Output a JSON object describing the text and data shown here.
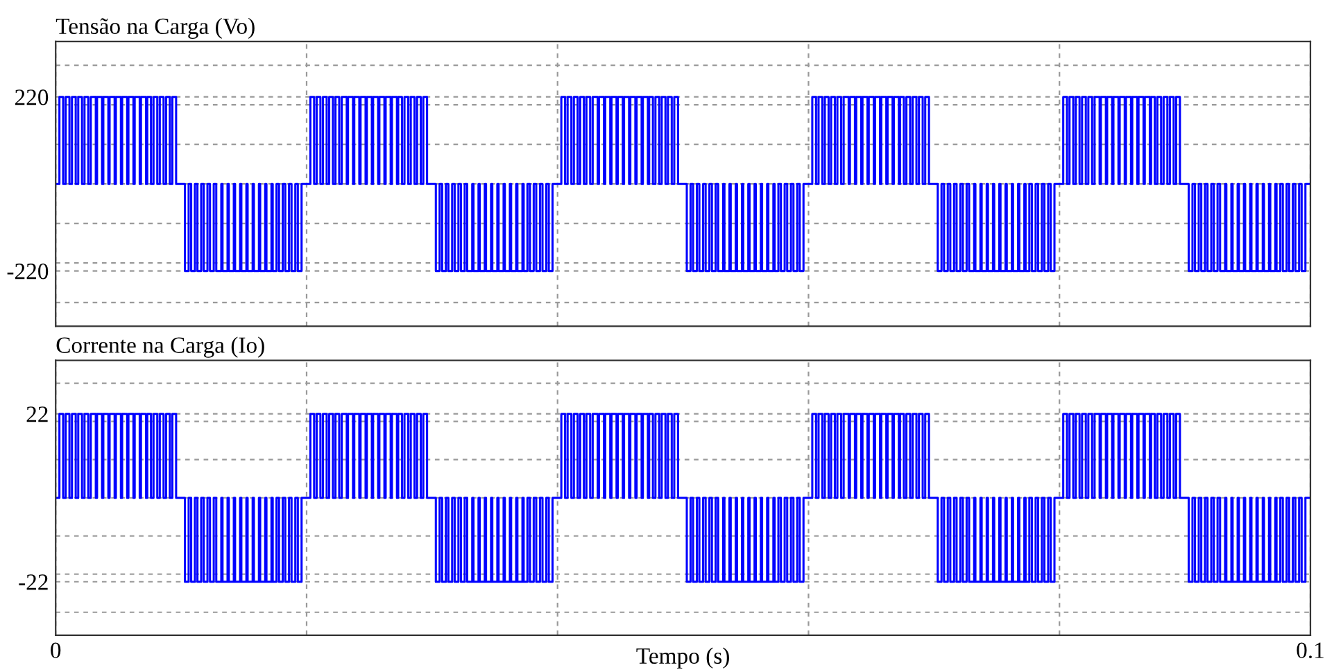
{
  "chart_data": [
    {
      "type": "step",
      "title": "Tensão na Carga (Vo)",
      "xlim": [
        0,
        0.1
      ],
      "ylim": [
        -360,
        360
      ],
      "grid": true,
      "tick_labels": "y",
      "xticks": [
        0,
        {
          "value": 0.02,
          "label": null
        },
        {
          "value": 0.04,
          "label": null
        },
        {
          "value": 0.06,
          "label": null
        },
        {
          "value": 0.08,
          "label": null
        },
        {
          "value": 0.1,
          "label": null
        }
      ],
      "yticks": [
        {
          "value": -300,
          "label": null
        },
        -220,
        {
          "value": -200,
          "label": null
        },
        {
          "value": -100,
          "label": null
        },
        {
          "value": 0,
          "label": null
        },
        {
          "value": 100,
          "label": null
        },
        {
          "value": 200,
          "label": null
        },
        220,
        {
          "value": 300,
          "label": null
        }
      ],
      "x": [
        0,
        0.0003,
        0.0006,
        0.0008,
        0.0011,
        0.0013,
        0.0016,
        0.0018,
        0.0021,
        0.0023,
        0.0026,
        0.0028,
        0.0032,
        0.0033,
        0.0037,
        0.0038,
        0.0042,
        0.0043,
        0.0047,
        0.0048,
        0.0052,
        0.0053,
        0.0057,
        0.0058,
        0.0062,
        0.0063,
        0.0067,
        0.0068,
        0.0072,
        0.0073,
        0.0076,
        0.0078,
        0.0081,
        0.0083,
        0.0086,
        0.0088,
        0.0091,
        0.0093,
        0.0096,
        0.0103,
        0.0106,
        0.0108,
        0.0111,
        0.0113,
        0.0116,
        0.0118,
        0.0121,
        0.0123,
        0.0126,
        0.0128,
        0.0132,
        0.0133,
        0.0137,
        0.0138,
        0.0142,
        0.0143,
        0.0147,
        0.0148,
        0.0152,
        0.0153,
        0.0157,
        0.0158,
        0.0162,
        0.0163,
        0.0167,
        0.0168,
        0.0172,
        0.0173,
        0.0176,
        0.0178,
        0.0181,
        0.0183,
        0.0186,
        0.0188,
        0.0191,
        0.0193,
        0.0196,
        0.0203,
        0.0206,
        0.0208,
        0.0211,
        0.0213,
        0.0216,
        0.0218,
        0.0221,
        0.0223,
        0.0226,
        0.0228,
        0.0232,
        0.0233,
        0.0237,
        0.0238,
        0.0242,
        0.0243,
        0.0247,
        0.0248,
        0.0252,
        0.0253,
        0.0257,
        0.0258,
        0.0262,
        0.0263,
        0.0267,
        0.0268,
        0.0272,
        0.0273,
        0.0276,
        0.0278,
        0.0281,
        0.0283,
        0.0286,
        0.0288,
        0.0291,
        0.0293,
        0.0296,
        0.0303,
        0.0306,
        0.0308,
        0.0311,
        0.0313,
        0.0316,
        0.0318,
        0.0321,
        0.0323,
        0.0326,
        0.0328,
        0.0332,
        0.0333,
        0.0337,
        0.0338,
        0.0342,
        0.0343,
        0.0347,
        0.0348,
        0.0352,
        0.0353,
        0.0357,
        0.0358,
        0.0362,
        0.0363,
        0.0367,
        0.0368,
        0.0372,
        0.0373,
        0.0376,
        0.0378,
        0.0381,
        0.0383,
        0.0386,
        0.0388,
        0.0391,
        0.0393,
        0.0396,
        0.0403,
        0.0406,
        0.0408,
        0.0411,
        0.0413,
        0.0416,
        0.0418,
        0.0421,
        0.0423,
        0.0426,
        0.0428,
        0.0432,
        0.0433,
        0.0437,
        0.0438,
        0.0442,
        0.0443,
        0.0447,
        0.0448,
        0.0452,
        0.0453,
        0.0457,
        0.0458,
        0.0462,
        0.0463,
        0.0467,
        0.0468,
        0.0472,
        0.0473,
        0.0476,
        0.0478,
        0.0481,
        0.0483,
        0.0486,
        0.0488,
        0.0491,
        0.0493,
        0.0496,
        0.0503,
        0.0506,
        0.0508,
        0.0511,
        0.0513,
        0.0516,
        0.0518,
        0.0521,
        0.0523,
        0.0526,
        0.0528,
        0.0532,
        0.0533,
        0.0537,
        0.0538,
        0.0542,
        0.0543,
        0.0547,
        0.0548,
        0.0552,
        0.0553,
        0.0557,
        0.0558,
        0.0562,
        0.0563,
        0.0567,
        0.0568,
        0.0572,
        0.0573,
        0.0576,
        0.0578,
        0.0581,
        0.0583,
        0.0586,
        0.0588,
        0.0591,
        0.0593,
        0.0596,
        0.0603,
        0.0606,
        0.0608,
        0.0611,
        0.0613,
        0.0616,
        0.0618,
        0.0621,
        0.0623,
        0.0626,
        0.0628,
        0.0632,
        0.0633,
        0.0637,
        0.0638,
        0.0642,
        0.0643,
        0.0647,
        0.0648,
        0.0652,
        0.0653,
        0.0657,
        0.0658,
        0.0662,
        0.0663,
        0.0667,
        0.0668,
        0.0672,
        0.0673,
        0.0676,
        0.0678,
        0.0681,
        0.0683,
        0.0686,
        0.0688,
        0.0691,
        0.0693,
        0.0696,
        0.0703,
        0.0706,
        0.0708,
        0.0711,
        0.0713,
        0.0716,
        0.0718,
        0.0721,
        0.0723,
        0.0726,
        0.0728,
        0.0732,
        0.0733,
        0.0737,
        0.0738,
        0.0742,
        0.0743,
        0.0747,
        0.0748,
        0.0752,
        0.0753,
        0.0757,
        0.0758,
        0.0762,
        0.0763,
        0.0767,
        0.0768,
        0.0772,
        0.0773,
        0.0776,
        0.0778,
        0.0781,
        0.0783,
        0.0786,
        0.0788,
        0.0791,
        0.0793,
        0.0796,
        0.0803,
        0.0806,
        0.0808,
        0.0811,
        0.0813,
        0.0816,
        0.0818,
        0.0821,
        0.0823,
        0.0826,
        0.0828,
        0.0832,
        0.0833,
        0.0837,
        0.0838,
        0.0842,
        0.0843,
        0.0847,
        0.0848,
        0.0852,
        0.0853,
        0.0857,
        0.0858,
        0.0862,
        0.0863,
        0.0867,
        0.0868,
        0.0872,
        0.0873,
        0.0876,
        0.0878,
        0.0881,
        0.0883,
        0.0886,
        0.0888,
        0.0891,
        0.0893,
        0.0896,
        0.0903,
        0.0906,
        0.0908,
        0.0911,
        0.0913,
        0.0916,
        0.0918,
        0.0921,
        0.0923,
        0.0926,
        0.0928,
        0.0932,
        0.0933,
        0.0937,
        0.0938,
        0.0942,
        0.0943,
        0.0947,
        0.0948,
        0.0952,
        0.0953,
        0.0957,
        0.0958,
        0.0962,
        0.0963,
        0.0967,
        0.0968,
        0.0972,
        0.0973,
        0.0976,
        0.0978,
        0.0981,
        0.0983,
        0.0986,
        0.0988,
        0.0991,
        0.0993,
        0.0996,
        0.1
      ],
      "series": [
        {
          "color": "#0000ff",
          "values": [
            0,
            220,
            0,
            220,
            0,
            220,
            0,
            220,
            0,
            220,
            0,
            220,
            0,
            220,
            0,
            220,
            0,
            220,
            0,
            220,
            0,
            220,
            0,
            220,
            0,
            220,
            0,
            220,
            0,
            220,
            0,
            220,
            0,
            220,
            0,
            220,
            0,
            220,
            0,
            -220,
            0,
            -220,
            0,
            -220,
            0,
            -220,
            0,
            -220,
            0,
            -220,
            0,
            -220,
            0,
            -220,
            0,
            -220,
            0,
            -220,
            0,
            -220,
            0,
            -220,
            0,
            -220,
            0,
            -220,
            0,
            -220,
            0,
            -220,
            0,
            -220,
            0,
            -220,
            0,
            -220,
            0,
            220,
            0,
            220,
            0,
            220,
            0,
            220,
            0,
            220,
            0,
            220,
            0,
            220,
            0,
            220,
            0,
            220,
            0,
            220,
            0,
            220,
            0,
            220,
            0,
            220,
            0,
            220,
            0,
            220,
            0,
            220,
            0,
            220,
            0,
            220,
            0,
            220,
            0,
            -220,
            0,
            -220,
            0,
            -220,
            0,
            -220,
            0,
            -220,
            0,
            -220,
            0,
            -220,
            0,
            -220,
            0,
            -220,
            0,
            -220,
            0,
            -220,
            0,
            -220,
            0,
            -220,
            0,
            -220,
            0,
            -220,
            0,
            -220,
            0,
            -220,
            0,
            -220,
            0,
            -220,
            0,
            220,
            0,
            220,
            0,
            220,
            0,
            220,
            0,
            220,
            0,
            220,
            0,
            220,
            0,
            220,
            0,
            220,
            0,
            220,
            0,
            220,
            0,
            220,
            0,
            220,
            0,
            220,
            0,
            220,
            0,
            220,
            0,
            220,
            0,
            220,
            0,
            220,
            0,
            -220,
            0,
            -220,
            0,
            -220,
            0,
            -220,
            0,
            -220,
            0,
            -220,
            0,
            -220,
            0,
            -220,
            0,
            -220,
            0,
            -220,
            0,
            -220,
            0,
            -220,
            0,
            -220,
            0,
            -220,
            0,
            -220,
            0,
            -220,
            0,
            -220,
            0,
            -220,
            0,
            -220,
            0,
            220,
            0,
            220,
            0,
            220,
            0,
            220,
            0,
            220,
            0,
            220,
            0,
            220,
            0,
            220,
            0,
            220,
            0,
            220,
            0,
            220,
            0,
            220,
            0,
            220,
            0,
            220,
            0,
            220,
            0,
            220,
            0,
            220,
            0,
            220,
            0,
            220,
            0,
            -220,
            0,
            -220,
            0,
            -220,
            0,
            -220,
            0,
            -220,
            0,
            -220,
            0,
            -220,
            0,
            -220,
            0,
            -220,
            0,
            -220,
            0,
            -220,
            0,
            -220,
            0,
            -220,
            0,
            -220,
            0,
            -220,
            0,
            -220,
            0,
            -220,
            0,
            -220,
            0,
            -220,
            0,
            220,
            0,
            220,
            0,
            220,
            0,
            220,
            0,
            220,
            0,
            220,
            0,
            220,
            0,
            220,
            0,
            220,
            0,
            220,
            0,
            220,
            0,
            220,
            0,
            220,
            0,
            220,
            0,
            220,
            0,
            220,
            0,
            220,
            0,
            220,
            0,
            220,
            0,
            -220,
            0,
            -220,
            0,
            -220,
            0,
            -220,
            0,
            -220,
            0,
            -220,
            0,
            -220,
            0,
            -220,
            0,
            -220,
            0,
            -220,
            0,
            -220,
            0,
            -220,
            0,
            -220,
            0,
            -220,
            0,
            -220,
            0,
            -220,
            0,
            -220,
            0,
            -220,
            0,
            -220,
            0,
            0
          ]
        }
      ]
    },
    {
      "type": "step",
      "title": "Corrente na Carga (Io)",
      "xlabel": "Tempo (s)",
      "xlim": [
        0,
        0.1
      ],
      "ylim": [
        -36,
        36
      ],
      "grid": true,
      "xticks": [
        0,
        {
          "value": 0.02,
          "label": null
        },
        {
          "value": 0.04,
          "label": null
        },
        {
          "value": 0.06,
          "label": null
        },
        {
          "value": 0.08,
          "label": null
        },
        0.1
      ],
      "yticks": [
        {
          "value": -30,
          "label": null
        },
        -22,
        {
          "value": -20,
          "label": null
        },
        {
          "value": -10,
          "label": null
        },
        {
          "value": 0,
          "label": null
        },
        {
          "value": 10,
          "label": null
        },
        {
          "value": 20,
          "label": null
        },
        22,
        {
          "value": 30,
          "label": null
        }
      ],
      "x": [
        0,
        0.0003,
        0.0006,
        0.0008,
        0.0011,
        0.0013,
        0.0016,
        0.0018,
        0.0021,
        0.0023,
        0.0026,
        0.0028,
        0.0032,
        0.0033,
        0.0037,
        0.0038,
        0.0042,
        0.0043,
        0.0047,
        0.0048,
        0.0052,
        0.0053,
        0.0057,
        0.0058,
        0.0062,
        0.0063,
        0.0067,
        0.0068,
        0.0072,
        0.0073,
        0.0076,
        0.0078,
        0.0081,
        0.0083,
        0.0086,
        0.0088,
        0.0091,
        0.0093,
        0.0096,
        0.0103,
        0.0106,
        0.0108,
        0.0111,
        0.0113,
        0.0116,
        0.0118,
        0.0121,
        0.0123,
        0.0126,
        0.0128,
        0.0132,
        0.0133,
        0.0137,
        0.0138,
        0.0142,
        0.0143,
        0.0147,
        0.0148,
        0.0152,
        0.0153,
        0.0157,
        0.0158,
        0.0162,
        0.0163,
        0.0167,
        0.0168,
        0.0172,
        0.0173,
        0.0176,
        0.0178,
        0.0181,
        0.0183,
        0.0186,
        0.0188,
        0.0191,
        0.0193,
        0.0196,
        0.0203,
        0.0206,
        0.0208,
        0.0211,
        0.0213,
        0.0216,
        0.0218,
        0.0221,
        0.0223,
        0.0226,
        0.0228,
        0.0232,
        0.0233,
        0.0237,
        0.0238,
        0.0242,
        0.0243,
        0.0247,
        0.0248,
        0.0252,
        0.0253,
        0.0257,
        0.0258,
        0.0262,
        0.0263,
        0.0267,
        0.0268,
        0.0272,
        0.0273,
        0.0276,
        0.0278,
        0.0281,
        0.0283,
        0.0286,
        0.0288,
        0.0291,
        0.0293,
        0.0296,
        0.0303,
        0.0306,
        0.0308,
        0.0311,
        0.0313,
        0.0316,
        0.0318,
        0.0321,
        0.0323,
        0.0326,
        0.0328,
        0.0332,
        0.0333,
        0.0337,
        0.0338,
        0.0342,
        0.0343,
        0.0347,
        0.0348,
        0.0352,
        0.0353,
        0.0357,
        0.0358,
        0.0362,
        0.0363,
        0.0367,
        0.0368,
        0.0372,
        0.0373,
        0.0376,
        0.0378,
        0.0381,
        0.0383,
        0.0386,
        0.0388,
        0.0391,
        0.0393,
        0.0396,
        0.0403,
        0.0406,
        0.0408,
        0.0411,
        0.0413,
        0.0416,
        0.0418,
        0.0421,
        0.0423,
        0.0426,
        0.0428,
        0.0432,
        0.0433,
        0.0437,
        0.0438,
        0.0442,
        0.0443,
        0.0447,
        0.0448,
        0.0452,
        0.0453,
        0.0457,
        0.0458,
        0.0462,
        0.0463,
        0.0467,
        0.0468,
        0.0472,
        0.0473,
        0.0476,
        0.0478,
        0.0481,
        0.0483,
        0.0486,
        0.0488,
        0.0491,
        0.0493,
        0.0496,
        0.0503,
        0.0506,
        0.0508,
        0.0511,
        0.0513,
        0.0516,
        0.0518,
        0.0521,
        0.0523,
        0.0526,
        0.0528,
        0.0532,
        0.0533,
        0.0537,
        0.0538,
        0.0542,
        0.0543,
        0.0547,
        0.0548,
        0.0552,
        0.0553,
        0.0557,
        0.0558,
        0.0562,
        0.0563,
        0.0567,
        0.0568,
        0.0572,
        0.0573,
        0.0576,
        0.0578,
        0.0581,
        0.0583,
        0.0586,
        0.0588,
        0.0591,
        0.0593,
        0.0596,
        0.0603,
        0.0606,
        0.0608,
        0.0611,
        0.0613,
        0.0616,
        0.0618,
        0.0621,
        0.0623,
        0.0626,
        0.0628,
        0.0632,
        0.0633,
        0.0637,
        0.0638,
        0.0642,
        0.0643,
        0.0647,
        0.0648,
        0.0652,
        0.0653,
        0.0657,
        0.0658,
        0.0662,
        0.0663,
        0.0667,
        0.0668,
        0.0672,
        0.0673,
        0.0676,
        0.0678,
        0.0681,
        0.0683,
        0.0686,
        0.0688,
        0.0691,
        0.0693,
        0.0696,
        0.0703,
        0.0706,
        0.0708,
        0.0711,
        0.0713,
        0.0716,
        0.0718,
        0.0721,
        0.0723,
        0.0726,
        0.0728,
        0.0732,
        0.0733,
        0.0737,
        0.0738,
        0.0742,
        0.0743,
        0.0747,
        0.0748,
        0.0752,
        0.0753,
        0.0757,
        0.0758,
        0.0762,
        0.0763,
        0.0767,
        0.0768,
        0.0772,
        0.0773,
        0.0776,
        0.0778,
        0.0781,
        0.0783,
        0.0786,
        0.0788,
        0.0791,
        0.0793,
        0.0796,
        0.0803,
        0.0806,
        0.0808,
        0.0811,
        0.0813,
        0.0816,
        0.0818,
        0.0821,
        0.0823,
        0.0826,
        0.0828,
        0.0832,
        0.0833,
        0.0837,
        0.0838,
        0.0842,
        0.0843,
        0.0847,
        0.0848,
        0.0852,
        0.0853,
        0.0857,
        0.0858,
        0.0862,
        0.0863,
        0.0867,
        0.0868,
        0.0872,
        0.0873,
        0.0876,
        0.0878,
        0.0881,
        0.0883,
        0.0886,
        0.0888,
        0.0891,
        0.0893,
        0.0896,
        0.0903,
        0.0906,
        0.0908,
        0.0911,
        0.0913,
        0.0916,
        0.0918,
        0.0921,
        0.0923,
        0.0926,
        0.0928,
        0.0932,
        0.0933,
        0.0937,
        0.0938,
        0.0942,
        0.0943,
        0.0947,
        0.0948,
        0.0952,
        0.0953,
        0.0957,
        0.0958,
        0.0962,
        0.0963,
        0.0967,
        0.0968,
        0.0972,
        0.0973,
        0.0976,
        0.0978,
        0.0981,
        0.0983,
        0.0986,
        0.0988,
        0.0991,
        0.0993,
        0.0996,
        0.1
      ],
      "series": [
        {
          "color": "#0000ff",
          "values": [
            0,
            22,
            0,
            22,
            0,
            22,
            0,
            22,
            0,
            22,
            0,
            22,
            0,
            22,
            0,
            22,
            0,
            22,
            0,
            22,
            0,
            22,
            0,
            22,
            0,
            22,
            0,
            22,
            0,
            22,
            0,
            22,
            0,
            22,
            0,
            22,
            0,
            22,
            0,
            -22,
            0,
            -22,
            0,
            -22,
            0,
            -22,
            0,
            -22,
            0,
            -22,
            0,
            -22,
            0,
            -22,
            0,
            -22,
            0,
            -22,
            0,
            -22,
            0,
            -22,
            0,
            -22,
            0,
            -22,
            0,
            -22,
            0,
            -22,
            0,
            -22,
            0,
            -22,
            0,
            -22,
            0,
            22,
            0,
            22,
            0,
            22,
            0,
            22,
            0,
            22,
            0,
            22,
            0,
            22,
            0,
            22,
            0,
            22,
            0,
            22,
            0,
            22,
            0,
            22,
            0,
            22,
            0,
            22,
            0,
            22,
            0,
            22,
            0,
            22,
            0,
            22,
            0,
            22,
            0,
            -22,
            0,
            -22,
            0,
            -22,
            0,
            -22,
            0,
            -22,
            0,
            -22,
            0,
            -22,
            0,
            -22,
            0,
            -22,
            0,
            -22,
            0,
            -22,
            0,
            -22,
            0,
            -22,
            0,
            -22,
            0,
            -22,
            0,
            -22,
            0,
            -22,
            0,
            -22,
            0,
            -22,
            0,
            22,
            0,
            22,
            0,
            22,
            0,
            22,
            0,
            22,
            0,
            22,
            0,
            22,
            0,
            22,
            0,
            22,
            0,
            22,
            0,
            22,
            0,
            22,
            0,
            22,
            0,
            22,
            0,
            22,
            0,
            22,
            0,
            22,
            0,
            22,
            0,
            22,
            0,
            -22,
            0,
            -22,
            0,
            -22,
            0,
            -22,
            0,
            -22,
            0,
            -22,
            0,
            -22,
            0,
            -22,
            0,
            -22,
            0,
            -22,
            0,
            -22,
            0,
            -22,
            0,
            -22,
            0,
            -22,
            0,
            -22,
            0,
            -22,
            0,
            -22,
            0,
            -22,
            0,
            -22,
            0,
            22,
            0,
            22,
            0,
            22,
            0,
            22,
            0,
            22,
            0,
            22,
            0,
            22,
            0,
            22,
            0,
            22,
            0,
            22,
            0,
            22,
            0,
            22,
            0,
            22,
            0,
            22,
            0,
            22,
            0,
            22,
            0,
            22,
            0,
            22,
            0,
            22,
            0,
            -22,
            0,
            -22,
            0,
            -22,
            0,
            -22,
            0,
            -22,
            0,
            -22,
            0,
            -22,
            0,
            -22,
            0,
            -22,
            0,
            -22,
            0,
            -22,
            0,
            -22,
            0,
            -22,
            0,
            -22,
            0,
            -22,
            0,
            -22,
            0,
            -22,
            0,
            -22,
            0,
            -22,
            0,
            22,
            0,
            22,
            0,
            22,
            0,
            22,
            0,
            22,
            0,
            22,
            0,
            22,
            0,
            22,
            0,
            22,
            0,
            22,
            0,
            22,
            0,
            22,
            0,
            22,
            0,
            22,
            0,
            22,
            0,
            22,
            0,
            22,
            0,
            22,
            0,
            22,
            0,
            -22,
            0,
            -22,
            0,
            -22,
            0,
            -22,
            0,
            -22,
            0,
            -22,
            0,
            -22,
            0,
            -22,
            0,
            -22,
            0,
            -22,
            0,
            -22,
            0,
            -22,
            0,
            -22,
            0,
            -22,
            0,
            -22,
            0,
            -22,
            0,
            -22,
            0,
            -22,
            0,
            -22,
            0,
            0
          ]
        }
      ]
    }
  ]
}
